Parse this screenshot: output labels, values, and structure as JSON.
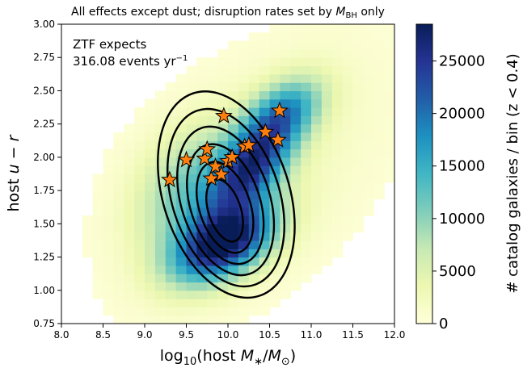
{
  "chart_data": {
    "type": "heatmap",
    "title": "All effects except dust; disruption rates set by M_BH only",
    "xlabel": "log10(host M*/M☉)",
    "ylabel": "host u − r",
    "colorbar_label": "# catalog galaxies / bin (z < 0.4)",
    "xlim": [
      8.0,
      12.0
    ],
    "ylim": [
      0.75,
      3.0
    ],
    "x_ticks": [
      "8.0",
      "8.5",
      "9.0",
      "9.5",
      "10.0",
      "10.5",
      "11.0",
      "11.5",
      "12.0"
    ],
    "y_ticks": [
      "0.75",
      "1.00",
      "1.25",
      "1.50",
      "1.75",
      "2.00",
      "2.25",
      "2.50",
      "2.75",
      "3.00"
    ],
    "colorbar_ticks": [
      "0",
      "5000",
      "10000",
      "15000",
      "20000",
      "25000"
    ],
    "colorbar_range": [
      0,
      28500
    ],
    "colormap": [
      "#ffffd9",
      "#edf8b1",
      "#c7e9b4",
      "#7fcdbb",
      "#41b6c4",
      "#1d91c0",
      "#225ea8",
      "#253494",
      "#081d58"
    ],
    "annotation": {
      "line1": "ZTF expects",
      "line2": "316.08 events yr",
      "line2_sup": "−1"
    },
    "contour_levels": 6,
    "marker_color": "#ff7f0e",
    "observed_tdes": [
      {
        "x": 9.3,
        "y": 1.83
      },
      {
        "x": 9.5,
        "y": 1.98
      },
      {
        "x": 9.72,
        "y": 1.99
      },
      {
        "x": 9.75,
        "y": 2.06
      },
      {
        "x": 9.8,
        "y": 1.84
      },
      {
        "x": 9.85,
        "y": 1.93
      },
      {
        "x": 9.92,
        "y": 1.87
      },
      {
        "x": 9.95,
        "y": 2.31
      },
      {
        "x": 10.0,
        "y": 1.97
      },
      {
        "x": 10.05,
        "y": 2.0
      },
      {
        "x": 10.2,
        "y": 2.08
      },
      {
        "x": 10.25,
        "y": 2.09
      },
      {
        "x": 10.45,
        "y": 2.19
      },
      {
        "x": 10.6,
        "y": 2.13
      },
      {
        "x": 10.62,
        "y": 2.35
      }
    ]
  }
}
